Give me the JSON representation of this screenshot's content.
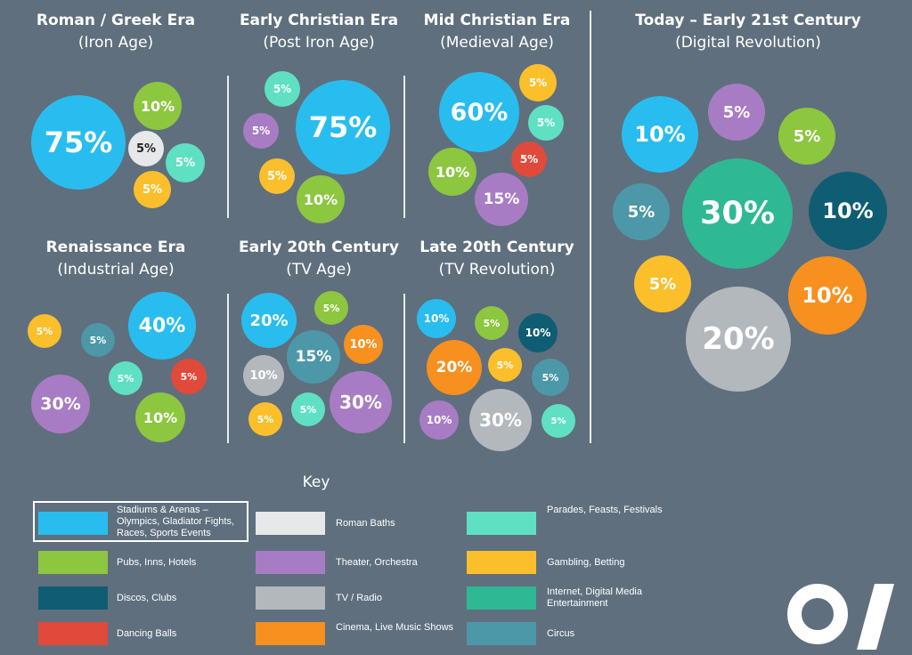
{
  "panels": [
    {
      "title": "Roman / Greek Era",
      "subtitle": "(Iron Age)"
    },
    {
      "title": "Early Christian Era",
      "subtitle": "(Post Iron Age)"
    },
    {
      "title": "Mid Christian Era",
      "subtitle": "(Medieval Age)"
    },
    {
      "title": "Today – Early 21st Century",
      "subtitle": "(Digital Revolution)"
    },
    {
      "title": "Renaissance Era",
      "subtitle": "(Industrial Age)"
    },
    {
      "title": "Early 20th Century",
      "subtitle": "(TV Age)"
    },
    {
      "title": "Late 20th Century",
      "subtitle": "(TV Revolution)"
    }
  ],
  "key": {
    "title": "Key",
    "items": [
      {
        "id": "stadiums",
        "label": "Stadiums & Arenas – Olympics, Gladiator Fights, Races, Sports Events",
        "color": "#29bdef"
      },
      {
        "id": "pubs",
        "label": "Pubs, Inns, Hotels",
        "color": "#8dc63f"
      },
      {
        "id": "discos",
        "label": "Discos, Clubs",
        "color": "#0f5d73"
      },
      {
        "id": "balls",
        "label": "Dancing Balls",
        "color": "#e04a3a"
      },
      {
        "id": "baths",
        "label": "Roman Baths",
        "color": "#e6e8ea"
      },
      {
        "id": "theater",
        "label": "Theater, Orchestra",
        "color": "#a87cc4"
      },
      {
        "id": "tv",
        "label": "TV / Radio",
        "color": "#b3b8bd"
      },
      {
        "id": "cinema",
        "label": "Cinema, Live Music Shows",
        "color": "#f7901e"
      },
      {
        "id": "parades",
        "label": "Parades, Feasts, Festivals",
        "color": "#5fe0c3"
      },
      {
        "id": "gambling",
        "label": "Gambling, Betting",
        "color": "#fbbf2b"
      },
      {
        "id": "internet",
        "label": "Internet, Digital Media Entertainment",
        "color": "#2fb894"
      },
      {
        "id": "circus",
        "label": "Circus",
        "color": "#4d98a8"
      }
    ]
  },
  "chart_data": [
    {
      "type": "bubble",
      "title": "Roman / Greek Era",
      "subtitle": "(Iron Age)",
      "series": [
        {
          "category": "stadiums",
          "value": 75,
          "label": "75%"
        },
        {
          "category": "pubs",
          "value": 10,
          "label": "10%"
        },
        {
          "category": "baths",
          "value": 5,
          "label": "5%"
        },
        {
          "category": "parades",
          "value": 5,
          "label": "5%"
        },
        {
          "category": "gambling",
          "value": 5,
          "label": "5%"
        }
      ]
    },
    {
      "type": "bubble",
      "title": "Early Christian Era",
      "subtitle": "(Post Iron Age)",
      "series": [
        {
          "category": "parades",
          "value": 5,
          "label": "5%"
        },
        {
          "category": "theater",
          "value": 5,
          "label": "5%"
        },
        {
          "category": "stadiums",
          "value": 75,
          "label": "75%"
        },
        {
          "category": "gambling",
          "value": 5,
          "label": "5%"
        },
        {
          "category": "pubs",
          "value": 10,
          "label": "10%"
        }
      ]
    },
    {
      "type": "bubble",
      "title": "Mid Christian Era",
      "subtitle": "(Medieval Age)",
      "series": [
        {
          "category": "stadiums",
          "value": 60,
          "label": "60%"
        },
        {
          "category": "gambling",
          "value": 5,
          "label": "5%"
        },
        {
          "category": "parades",
          "value": 5,
          "label": "5%"
        },
        {
          "category": "balls",
          "value": 5,
          "label": "5%"
        },
        {
          "category": "pubs",
          "value": 10,
          "label": "10%"
        },
        {
          "category": "theater",
          "value": 15,
          "label": "15%"
        }
      ]
    },
    {
      "type": "bubble",
      "title": "Today – Early 21st Century",
      "subtitle": "(Digital Revolution)",
      "series": [
        {
          "category": "stadiums",
          "value": 10,
          "label": "10%"
        },
        {
          "category": "theater",
          "value": 5,
          "label": "5%"
        },
        {
          "category": "pubs",
          "value": 5,
          "label": "5%"
        },
        {
          "category": "circus",
          "value": 5,
          "label": "5%"
        },
        {
          "category": "internet",
          "value": 30,
          "label": "30%"
        },
        {
          "category": "discos",
          "value": 10,
          "label": "10%"
        },
        {
          "category": "gambling",
          "value": 5,
          "label": "5%"
        },
        {
          "category": "cinema",
          "value": 10,
          "label": "10%"
        },
        {
          "category": "tv",
          "value": 20,
          "label": "20%"
        }
      ]
    },
    {
      "type": "bubble",
      "title": "Renaissance Era",
      "subtitle": "(Industrial Age)",
      "series": [
        {
          "category": "gambling",
          "value": 5,
          "label": "5%"
        },
        {
          "category": "circus",
          "value": 5,
          "label": "5%"
        },
        {
          "category": "stadiums",
          "value": 40,
          "label": "40%"
        },
        {
          "category": "parades",
          "value": 5,
          "label": "5%"
        },
        {
          "category": "balls",
          "value": 5,
          "label": "5%"
        },
        {
          "category": "theater",
          "value": 30,
          "label": "30%"
        },
        {
          "category": "pubs",
          "value": 10,
          "label": "10%"
        }
      ]
    },
    {
      "type": "bubble",
      "title": "Early 20th Century",
      "subtitle": "(TV Age)",
      "series": [
        {
          "category": "stadiums",
          "value": 20,
          "label": "20%"
        },
        {
          "category": "pubs",
          "value": 5,
          "label": "5%"
        },
        {
          "category": "circus",
          "value": 15,
          "label": "15%"
        },
        {
          "category": "cinema",
          "value": 10,
          "label": "10%"
        },
        {
          "category": "tv",
          "value": 10,
          "label": "10%"
        },
        {
          "category": "theater",
          "value": 30,
          "label": "30%"
        },
        {
          "category": "gambling",
          "value": 5,
          "label": "5%"
        },
        {
          "category": "parades",
          "value": 5,
          "label": "5%"
        }
      ]
    },
    {
      "type": "bubble",
      "title": "Late 20th Century",
      "subtitle": "(TV Revolution)",
      "series": [
        {
          "category": "stadiums",
          "value": 10,
          "label": "10%"
        },
        {
          "category": "pubs",
          "value": 5,
          "label": "5%"
        },
        {
          "category": "discos",
          "value": 10,
          "label": "10%"
        },
        {
          "category": "cinema",
          "value": 20,
          "label": "20%"
        },
        {
          "category": "gambling",
          "value": 5,
          "label": "5%"
        },
        {
          "category": "circus",
          "value": 5,
          "label": "5%"
        },
        {
          "category": "theater",
          "value": 10,
          "label": "10%"
        },
        {
          "category": "tv",
          "value": 30,
          "label": "30%"
        },
        {
          "category": "parades",
          "value": 5,
          "label": "5%"
        }
      ]
    }
  ]
}
